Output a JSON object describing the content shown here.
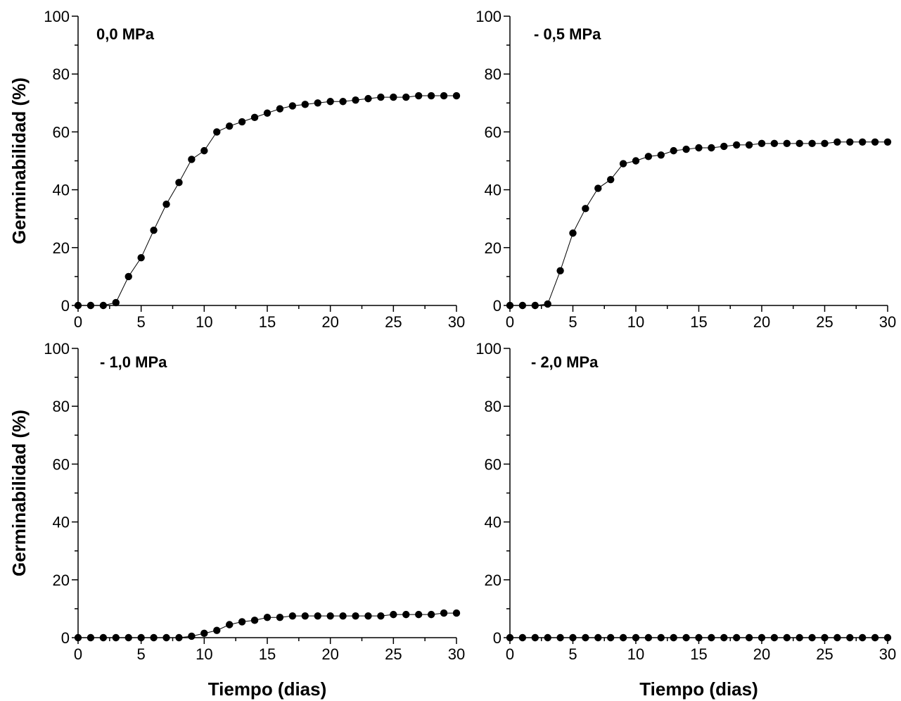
{
  "chart_data": [
    {
      "type": "line",
      "title": "0,0 MPa",
      "xlabel": "",
      "ylabel": "Germinabilidad (%)",
      "xlim": [
        0,
        30
      ],
      "ylim": [
        0,
        100
      ],
      "xticks": [
        0,
        5,
        10,
        15,
        20,
        25,
        30
      ],
      "yticks": [
        0,
        20,
        40,
        60,
        80,
        100
      ],
      "grid": false,
      "series": [
        {
          "x": [
            0,
            1,
            2,
            3,
            4,
            5,
            6,
            7,
            8,
            9,
            10,
            11,
            12,
            13,
            14,
            15,
            16,
            17,
            18,
            19,
            20,
            21,
            22,
            23,
            24,
            25,
            26,
            27,
            28,
            29,
            30
          ],
          "y": [
            0,
            0,
            0,
            1,
            10,
            16.5,
            26,
            35,
            42.5,
            50.5,
            53.5,
            60,
            62,
            63.5,
            65,
            66.5,
            68,
            69,
            69.5,
            70,
            70.5,
            70.5,
            71,
            71.5,
            72,
            72,
            72,
            72.5,
            72.5,
            72.5,
            72.5
          ]
        }
      ]
    },
    {
      "type": "line",
      "title": "- 0,5 MPa",
      "xlabel": "",
      "ylabel": "",
      "xlim": [
        0,
        30
      ],
      "ylim": [
        0,
        100
      ],
      "xticks": [
        0,
        5,
        10,
        15,
        20,
        25,
        30
      ],
      "yticks": [
        0,
        20,
        40,
        60,
        80,
        100
      ],
      "grid": false,
      "series": [
        {
          "x": [
            0,
            1,
            2,
            3,
            4,
            5,
            6,
            7,
            8,
            9,
            10,
            11,
            12,
            13,
            14,
            15,
            16,
            17,
            18,
            19,
            20,
            21,
            22,
            23,
            24,
            25,
            26,
            27,
            28,
            29,
            30
          ],
          "y": [
            0,
            0,
            0,
            0.5,
            12,
            25,
            33.5,
            40.5,
            43.5,
            49,
            50,
            51.5,
            52,
            53.5,
            54,
            54.5,
            54.5,
            55,
            55.5,
            55.5,
            56,
            56,
            56,
            56,
            56,
            56,
            56.5,
            56.5,
            56.5,
            56.5,
            56.5
          ]
        }
      ]
    },
    {
      "type": "line",
      "title": "- 1,0 MPa",
      "xlabel": "Tiempo (dias)",
      "ylabel": "Germinabilidad (%)",
      "xlim": [
        0,
        30
      ],
      "ylim": [
        0,
        100
      ],
      "xticks": [
        0,
        5,
        10,
        15,
        20,
        25,
        30
      ],
      "yticks": [
        0,
        20,
        40,
        60,
        80,
        100
      ],
      "grid": false,
      "series": [
        {
          "x": [
            0,
            1,
            2,
            3,
            4,
            5,
            6,
            7,
            8,
            9,
            10,
            11,
            12,
            13,
            14,
            15,
            16,
            17,
            18,
            19,
            20,
            21,
            22,
            23,
            24,
            25,
            26,
            27,
            28,
            29,
            30
          ],
          "y": [
            0,
            0,
            0,
            0,
            0,
            0,
            0,
            0,
            0,
            0.5,
            1.5,
            2.5,
            4.5,
            5.5,
            6,
            7,
            7,
            7.5,
            7.5,
            7.5,
            7.5,
            7.5,
            7.5,
            7.5,
            7.5,
            8,
            8,
            8,
            8,
            8.5,
            8.5
          ]
        }
      ]
    },
    {
      "type": "line",
      "title": "- 2,0 MPa",
      "xlabel": "Tiempo (dias)",
      "ylabel": "",
      "xlim": [
        0,
        30
      ],
      "ylim": [
        0,
        100
      ],
      "xticks": [
        0,
        5,
        10,
        15,
        20,
        25,
        30
      ],
      "yticks": [
        0,
        20,
        40,
        60,
        80,
        100
      ],
      "grid": false,
      "series": [
        {
          "x": [
            0,
            1,
            2,
            3,
            4,
            5,
            6,
            7,
            8,
            9,
            10,
            11,
            12,
            13,
            14,
            15,
            16,
            17,
            18,
            19,
            20,
            21,
            22,
            23,
            24,
            25,
            26,
            27,
            28,
            29,
            30
          ],
          "y": [
            0,
            0,
            0,
            0,
            0,
            0,
            0,
            0,
            0,
            0,
            0,
            0,
            0,
            0,
            0,
            0,
            0,
            0,
            0,
            0,
            0,
            0,
            0,
            0,
            0,
            0,
            0,
            0,
            0,
            0,
            0
          ]
        }
      ]
    }
  ]
}
